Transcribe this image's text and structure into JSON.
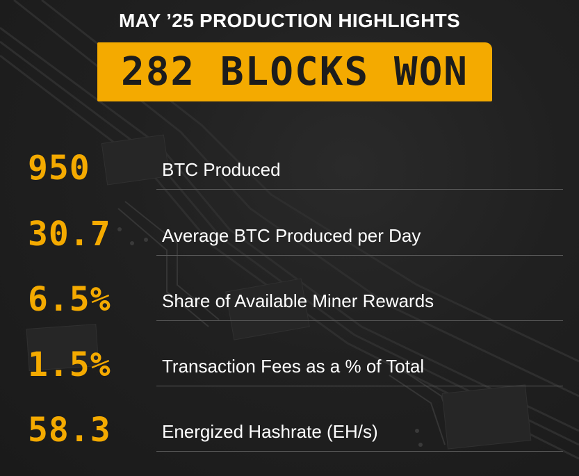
{
  "header": {
    "title": "MAY ’25 PRODUCTION HIGHLIGHTS"
  },
  "banner": {
    "text": "282 BLOCKS WON"
  },
  "metrics": [
    {
      "value": "950",
      "label": "BTC Produced"
    },
    {
      "value": "30.7",
      "label": "Average BTC Produced per Day"
    },
    {
      "value": "6.5%",
      "label": "Share of Available Miner Rewards"
    },
    {
      "value": "1.5%",
      "label": "Transaction Fees as a % of Total"
    },
    {
      "value": "58.3",
      "label": "Energized Hashrate (EH/s)"
    }
  ],
  "colors": {
    "accent": "#f4aa00",
    "background": "#1f1f1f",
    "text": "#ffffff",
    "divider": "#5a5a5a"
  }
}
